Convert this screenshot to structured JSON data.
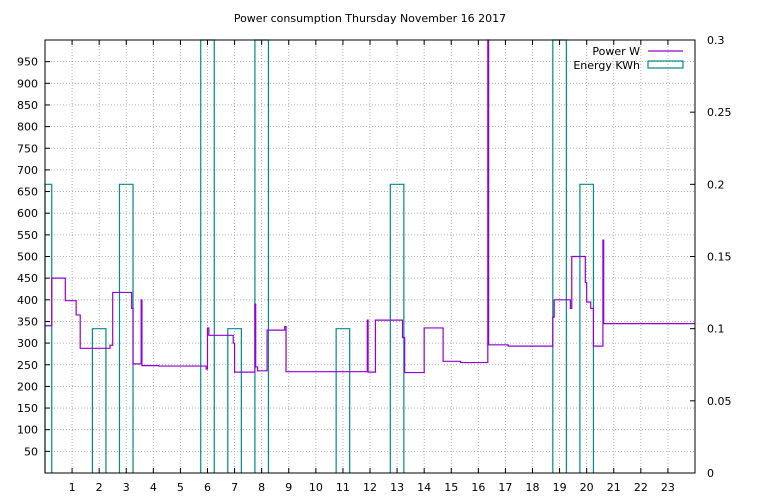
{
  "chart_data": {
    "type": "line",
    "title": "Power consumption Thursday November 16 2017",
    "xlabel": "",
    "ylabel": "",
    "y2label": "",
    "xlim": [
      0,
      24
    ],
    "ylim": [
      0,
      1000
    ],
    "y2lim": [
      0,
      0.3
    ],
    "grid": true,
    "legend_position": "top-right",
    "x_ticks": [
      1,
      2,
      3,
      4,
      5,
      6,
      7,
      8,
      9,
      10,
      11,
      12,
      13,
      14,
      15,
      16,
      17,
      18,
      19,
      20,
      21,
      22,
      23
    ],
    "y_ticks": [
      50,
      100,
      150,
      200,
      250,
      300,
      350,
      400,
      450,
      500,
      550,
      600,
      650,
      700,
      750,
      800,
      850,
      900,
      950
    ],
    "y2_ticks": [
      {
        "v": 0,
        "label": "0"
      },
      {
        "v": 0.05,
        "label": "0.05"
      },
      {
        "v": 0.1,
        "label": "0.1"
      },
      {
        "v": 0.15,
        "label": "0.15"
      },
      {
        "v": 0.2,
        "label": "0.2"
      },
      {
        "v": 0.25,
        "label": "0.25"
      },
      {
        "v": 0.3,
        "label": "0.3"
      }
    ],
    "series": [
      {
        "name": "Power W",
        "color": "#9400d3",
        "axis": "y",
        "points": [
          [
            0,
            340
          ],
          [
            0.25,
            340
          ],
          [
            0.25,
            450
          ],
          [
            0.75,
            450
          ],
          [
            0.75,
            398
          ],
          [
            1.15,
            398
          ],
          [
            1.15,
            365
          ],
          [
            1.3,
            365
          ],
          [
            1.3,
            288
          ],
          [
            2.4,
            288
          ],
          [
            2.4,
            295
          ],
          [
            2.5,
            295
          ],
          [
            2.5,
            417
          ],
          [
            3.2,
            417
          ],
          [
            3.2,
            380
          ],
          [
            3.25,
            380
          ],
          [
            3.25,
            252
          ],
          [
            3.55,
            252
          ],
          [
            3.55,
            400
          ],
          [
            3.58,
            400
          ],
          [
            3.58,
            248
          ],
          [
            4.2,
            248
          ],
          [
            4.2,
            247
          ],
          [
            5.95,
            247
          ],
          [
            5.95,
            240
          ],
          [
            6.0,
            240
          ],
          [
            6.0,
            335
          ],
          [
            6.05,
            335
          ],
          [
            6.05,
            318
          ],
          [
            6.95,
            318
          ],
          [
            6.95,
            300
          ],
          [
            7.0,
            300
          ],
          [
            7.0,
            233
          ],
          [
            7.75,
            233
          ],
          [
            7.75,
            390
          ],
          [
            7.78,
            390
          ],
          [
            7.78,
            245
          ],
          [
            7.85,
            245
          ],
          [
            7.85,
            236
          ],
          [
            8.2,
            236
          ],
          [
            8.2,
            330
          ],
          [
            8.85,
            330
          ],
          [
            8.85,
            338
          ],
          [
            8.9,
            338
          ],
          [
            8.9,
            234
          ],
          [
            11.9,
            234
          ],
          [
            11.9,
            353
          ],
          [
            11.93,
            353
          ],
          [
            11.93,
            233
          ],
          [
            12.2,
            233
          ],
          [
            12.2,
            353
          ],
          [
            13.2,
            353
          ],
          [
            13.2,
            313
          ],
          [
            13.28,
            313
          ],
          [
            13.28,
            232
          ],
          [
            14.0,
            232
          ],
          [
            14.0,
            335
          ],
          [
            14.7,
            335
          ],
          [
            14.7,
            258
          ],
          [
            15.35,
            258
          ],
          [
            15.35,
            255
          ],
          [
            16.35,
            255
          ],
          [
            16.35,
            1000
          ],
          [
            16.38,
            1000
          ],
          [
            16.38,
            296
          ],
          [
            17.1,
            296
          ],
          [
            17.1,
            293
          ],
          [
            18.75,
            293
          ],
          [
            18.75,
            360
          ],
          [
            18.8,
            360
          ],
          [
            18.8,
            400
          ],
          [
            19.4,
            400
          ],
          [
            19.4,
            380
          ],
          [
            19.45,
            380
          ],
          [
            19.45,
            500
          ],
          [
            19.95,
            500
          ],
          [
            19.95,
            440
          ],
          [
            20.0,
            440
          ],
          [
            20.0,
            395
          ],
          [
            20.15,
            395
          ],
          [
            20.15,
            380
          ],
          [
            20.25,
            380
          ],
          [
            20.25,
            293
          ],
          [
            20.6,
            293
          ],
          [
            20.6,
            538
          ],
          [
            20.63,
            538
          ],
          [
            20.63,
            345
          ],
          [
            24,
            345
          ]
        ]
      },
      {
        "name": "Energy KWh",
        "color": "#008b8b",
        "axis": "y2",
        "bars": [
          [
            0.0,
            0.25,
            0.2
          ],
          [
            1.75,
            2.25,
            0.1
          ],
          [
            2.75,
            3.25,
            0.2
          ],
          [
            5.75,
            6.25,
            0.3
          ],
          [
            6.75,
            7.25,
            0.1
          ],
          [
            7.75,
            8.25,
            0.3
          ],
          [
            10.75,
            11.25,
            0.1
          ],
          [
            12.75,
            13.25,
            0.2
          ],
          [
            18.75,
            19.25,
            0.3
          ],
          [
            19.75,
            20.25,
            0.2
          ]
        ]
      }
    ]
  }
}
